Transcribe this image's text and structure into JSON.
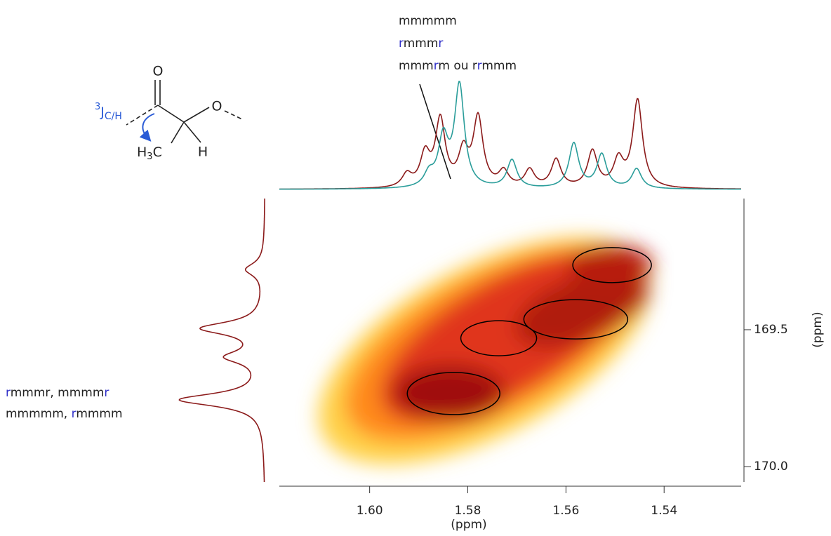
{
  "chart_data": {
    "type": "nmr2d",
    "xlabel": "(ppm)",
    "ylabel": "(ppm)",
    "xlim": [
      1.6184,
      1.5243
    ],
    "ylim": [
      169.021,
      170.056
    ],
    "xticks": [
      {
        "value": 1.6,
        "label": "1.60"
      },
      {
        "value": 1.58,
        "label": "1.58"
      },
      {
        "value": 1.56,
        "label": "1.56"
      },
      {
        "value": 1.54,
        "label": "1.54"
      }
    ],
    "yticks": [
      {
        "value": 169.5,
        "label": "169.5"
      },
      {
        "value": 170,
        "label": "170.0"
      }
    ],
    "peaks": {
      "color": "#000000",
      "x": [
        1.5506,
        1.558,
        1.5737,
        1.5829
      ],
      "y": [
        169.264,
        169.462,
        169.531,
        169.733
      ]
    },
    "spectra_top": [
      {
        "color": "#8b1a1a",
        "x": [
          1.5924,
          1.5887,
          1.5856,
          1.5809,
          1.5779,
          1.5727,
          1.5674,
          1.562,
          1.5546,
          1.5493,
          1.5454
        ],
        "values": [
          18,
          45,
          95,
          48,
          98,
          22,
          25,
          40,
          52,
          38,
          125
        ]
      },
      {
        "color": "#2a9d9a",
        "x": [
          1.5879,
          1.585,
          1.5817,
          1.571,
          1.5584,
          1.5527,
          1.5456
        ],
        "values": [
          18,
          68,
          145,
          40,
          64,
          48,
          28
        ]
      }
    ],
    "spectrum_left": {
      "color": "#8b1a1a",
      "y": [
        169.28,
        169.495,
        169.6,
        169.756
      ],
      "values": [
        26,
        88,
        50,
        120
      ]
    },
    "annotations_top": [
      [
        {
          "text": "mmmmm"
        }
      ],
      [
        {
          "text": "r",
          "color": "#3030c8"
        },
        {
          "text": "mmm"
        },
        {
          "text": "r",
          "color": "#3030c8"
        }
      ],
      [
        {
          "text": "mmm"
        },
        {
          "text": "r",
          "color": "#3030c8"
        },
        {
          "text": "m ou r"
        },
        {
          "text": "r",
          "color": "#3030c8"
        },
        {
          "text": "mmm"
        }
      ]
    ],
    "annotations_left": [
      [
        {
          "text": "r",
          "color": "#3030c8"
        },
        {
          "text": "mmmr, mmmm"
        },
        {
          "text": "r",
          "color": "#3030c8"
        }
      ],
      [
        {
          "text": "mmmmm, "
        },
        {
          "text": "r",
          "color": "#3030c8"
        },
        {
          "text": "mmmm"
        }
      ]
    ],
    "molecule": {
      "carbonyl_o": "O",
      "ether_o": "O",
      "methyl": [
        "H",
        "3",
        "C"
      ],
      "hydrogen": "H",
      "coupling": [
        "3",
        "J",
        "C/H"
      ]
    }
  }
}
